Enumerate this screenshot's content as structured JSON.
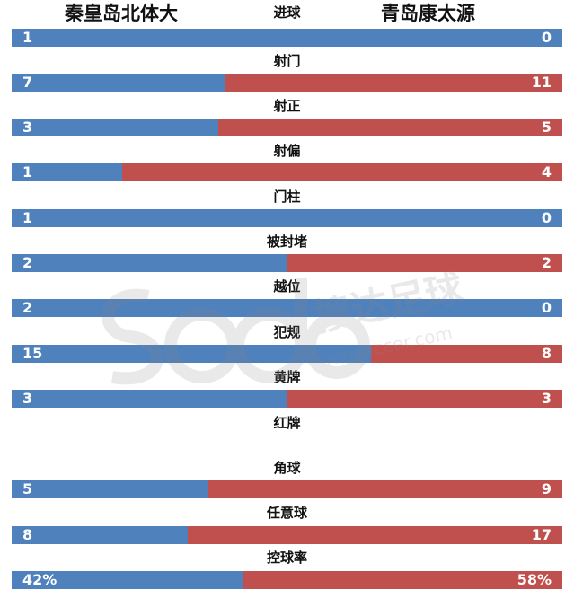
{
  "header": {
    "home_team": "秦皇岛北体大",
    "away_team": "青岛康太源"
  },
  "colors": {
    "home": "#4f81bd",
    "away": "#c0504d"
  },
  "watermark": {
    "logo": "sodo",
    "brand_cn": "搜达足球",
    "brand_url": "sodasoccer.com"
  },
  "stats": [
    {
      "label": "进球",
      "home": "1",
      "away": "0",
      "home_n": 1,
      "away_n": 0
    },
    {
      "label": "射门",
      "home": "7",
      "away": "11",
      "home_n": 7,
      "away_n": 11
    },
    {
      "label": "射正",
      "home": "3",
      "away": "5",
      "home_n": 3,
      "away_n": 5
    },
    {
      "label": "射偏",
      "home": "1",
      "away": "4",
      "home_n": 1,
      "away_n": 4
    },
    {
      "label": "门柱",
      "home": "1",
      "away": "0",
      "home_n": 1,
      "away_n": 0
    },
    {
      "label": "被封堵",
      "home": "2",
      "away": "2",
      "home_n": 2,
      "away_n": 2
    },
    {
      "label": "越位",
      "home": "2",
      "away": "0",
      "home_n": 2,
      "away_n": 0
    },
    {
      "label": "犯规",
      "home": "15",
      "away": "8",
      "home_n": 15,
      "away_n": 8
    },
    {
      "label": "黄牌",
      "home": "3",
      "away": "3",
      "home_n": 3,
      "away_n": 3
    },
    {
      "label": "红牌",
      "home": "",
      "away": "",
      "home_n": 0,
      "away_n": 0
    },
    {
      "label": "角球",
      "home": "5",
      "away": "9",
      "home_n": 5,
      "away_n": 9
    },
    {
      "label": "任意球",
      "home": "8",
      "away": "17",
      "home_n": 8,
      "away_n": 17
    },
    {
      "label": "控球率",
      "home": "42%",
      "away": "58%",
      "home_n": 42,
      "away_n": 58
    }
  ],
  "chart_data": {
    "type": "bar",
    "orientation": "horizontal-stacked-100%",
    "title": "秦皇岛北体大 vs 青岛康太源",
    "categories": [
      "进球",
      "射门",
      "射正",
      "射偏",
      "门柱",
      "被封堵",
      "越位",
      "犯规",
      "黄牌",
      "红牌",
      "角球",
      "任意球",
      "控球率"
    ],
    "series": [
      {
        "name": "秦皇岛北体大",
        "color": "#4f81bd",
        "values": [
          1,
          7,
          3,
          1,
          1,
          2,
          2,
          15,
          3,
          0,
          5,
          8,
          42
        ]
      },
      {
        "name": "青岛康太源",
        "color": "#c0504d",
        "values": [
          0,
          11,
          5,
          4,
          0,
          2,
          0,
          8,
          3,
          0,
          9,
          17,
          58
        ]
      }
    ],
    "xlabel": "",
    "ylabel": "",
    "grid": false,
    "legend": "team names at top (left: home, right: away)"
  }
}
